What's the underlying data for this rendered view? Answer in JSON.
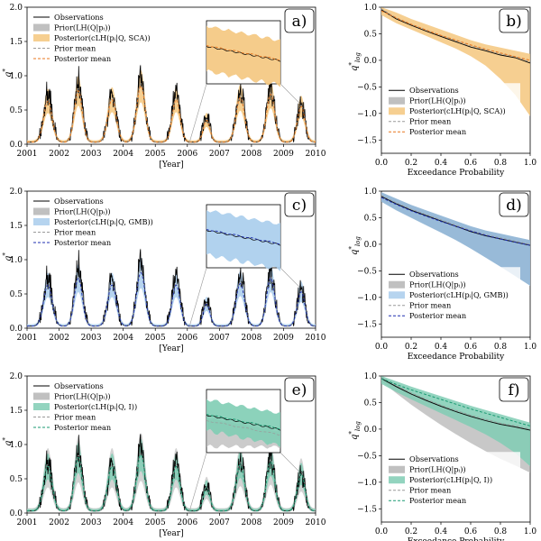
{
  "legend_common": {
    "observations": "Observations",
    "prior": "Prior(LH(Q|pᵢ))",
    "prior_mean": "Prior mean",
    "posterior_mean": "Posterior mean"
  },
  "colors": {
    "observations": "#000000",
    "prior_band": "#b5b5b5",
    "prior_mean": "#9a9a9a",
    "orange_band": "#f4c77e",
    "orange_mean": "#e8771f",
    "blue_band": "#a9cdec",
    "blue_mean": "#1f2fb0",
    "green_band": "#80cdb4",
    "green_mean": "#1a9a72"
  },
  "chart_data": [
    {
      "panel": "a)",
      "type": "line",
      "ylabel": "q*",
      "xlabel": "[Year]",
      "ylim": [
        0,
        2.0
      ],
      "yticks": [
        "0.0",
        "0.5",
        "1.0",
        "1.5",
        "2.0"
      ],
      "xticks": [
        "2001",
        "2002",
        "2003",
        "2004",
        "2005",
        "2006",
        "2007",
        "2008",
        "2009",
        "2010"
      ],
      "xlim": [
        2001,
        2010
      ],
      "posterior_label": "Posterior(cLH(pᵢ|Q, SCA))",
      "theme": "orange",
      "inset": true,
      "peaks": [
        {
          "x": 2001.65,
          "obs": 0.75,
          "mean": 0.6,
          "width": 0.28
        },
        {
          "x": 2002.6,
          "obs": 0.98,
          "mean": 0.75,
          "width": 0.26
        },
        {
          "x": 2003.65,
          "obs": 0.72,
          "mean": 0.62,
          "width": 0.28
        },
        {
          "x": 2004.55,
          "obs": 0.95,
          "mean": 0.82,
          "width": 0.28
        },
        {
          "x": 2005.65,
          "obs": 0.78,
          "mean": 0.62,
          "width": 0.26
        },
        {
          "x": 2006.6,
          "obs": 0.4,
          "mean": 0.32,
          "width": 0.22
        },
        {
          "x": 2007.65,
          "obs": 0.78,
          "mean": 0.65,
          "width": 0.28
        },
        {
          "x": 2008.6,
          "obs": 0.82,
          "mean": 0.7,
          "width": 0.27
        },
        {
          "x": 2009.55,
          "obs": 0.6,
          "mean": 0.52,
          "width": 0.25
        }
      ],
      "baseline": 0.03
    },
    {
      "panel": "b)",
      "type": "line",
      "ylabel": "q*log",
      "xlabel": "Exceedance Probability",
      "ylim": [
        -1.75,
        1.0
      ],
      "yticks": [
        "1.0",
        "0.5",
        "0.0",
        "−0.5",
        "−1.0",
        "−1.5"
      ],
      "xticks": [
        "0.0",
        "0.2",
        "0.4",
        "0.6",
        "0.8",
        "1.0"
      ],
      "xlim": [
        0,
        1
      ],
      "posterior_label": "Posterior(cLH(pᵢ|Q, SCA))",
      "theme": "orange",
      "curve": {
        "x": [
          0,
          0.1,
          0.2,
          0.3,
          0.4,
          0.5,
          0.6,
          0.7,
          0.8,
          0.9,
          1.0
        ],
        "obs": [
          0.95,
          0.78,
          0.66,
          0.55,
          0.45,
          0.35,
          0.25,
          0.18,
          0.1,
          0.05,
          -0.05
        ],
        "mean": [
          0.93,
          0.8,
          0.68,
          0.57,
          0.47,
          0.38,
          0.29,
          0.21,
          0.14,
          0.07,
          0.0
        ],
        "band_hi": [
          1.0,
          0.9,
          0.78,
          0.68,
          0.58,
          0.48,
          0.38,
          0.3,
          0.24,
          0.18,
          0.12
        ],
        "band_lo": [
          0.85,
          0.7,
          0.58,
          0.46,
          0.34,
          0.22,
          0.08,
          -0.1,
          -0.35,
          -0.65,
          -1.05
        ]
      }
    },
    {
      "panel": "c)",
      "type": "line",
      "ylabel": "q*",
      "xlabel": "[Year]",
      "ylim": [
        0,
        2.0
      ],
      "yticks": [
        "0.0",
        "0.5",
        "1.0",
        "1.5",
        "2.0"
      ],
      "xticks": [
        "2001",
        "2002",
        "2003",
        "2004",
        "2005",
        "2006",
        "2007",
        "2008",
        "2009",
        "2010"
      ],
      "xlim": [
        2001,
        2010
      ],
      "posterior_label": "Posterior(cLH(pᵢ|Q, GMB))",
      "theme": "blue",
      "inset": true,
      "peaks": [
        {
          "x": 2001.65,
          "obs": 0.75,
          "mean": 0.6,
          "width": 0.28
        },
        {
          "x": 2002.6,
          "obs": 0.98,
          "mean": 0.7,
          "width": 0.26
        },
        {
          "x": 2003.65,
          "obs": 0.72,
          "mean": 0.6,
          "width": 0.28
        },
        {
          "x": 2004.55,
          "obs": 0.95,
          "mean": 0.78,
          "width": 0.28
        },
        {
          "x": 2005.65,
          "obs": 0.78,
          "mean": 0.6,
          "width": 0.26
        },
        {
          "x": 2006.6,
          "obs": 0.4,
          "mean": 0.32,
          "width": 0.22
        },
        {
          "x": 2007.65,
          "obs": 0.78,
          "mean": 0.62,
          "width": 0.28
        },
        {
          "x": 2008.6,
          "obs": 0.82,
          "mean": 0.7,
          "width": 0.27
        },
        {
          "x": 2009.55,
          "obs": 0.6,
          "mean": 0.5,
          "width": 0.25
        }
      ],
      "baseline": 0.03
    },
    {
      "panel": "d)",
      "type": "line",
      "ylabel": "q*log",
      "xlabel": "Exceedance Probability",
      "ylim": [
        -1.75,
        1.0
      ],
      "yticks": [
        "1.0",
        "0.5",
        "0.0",
        "−0.5",
        "−1.0",
        "−1.5"
      ],
      "xticks": [
        "0.0",
        "0.2",
        "0.4",
        "0.6",
        "0.8",
        "1.0"
      ],
      "xlim": [
        0,
        1
      ],
      "posterior_label": "Posterior(cLH(pᵢ|Q, GMB))",
      "theme": "blue",
      "curve": {
        "x": [
          0,
          0.1,
          0.2,
          0.3,
          0.4,
          0.5,
          0.6,
          0.7,
          0.8,
          0.9,
          1.0
        ],
        "obs": [
          0.9,
          0.76,
          0.64,
          0.54,
          0.44,
          0.34,
          0.24,
          0.16,
          0.1,
          0.04,
          -0.02
        ],
        "mean": [
          0.88,
          0.75,
          0.63,
          0.53,
          0.43,
          0.34,
          0.25,
          0.17,
          0.1,
          0.04,
          -0.02
        ],
        "band_hi": [
          0.98,
          0.86,
          0.74,
          0.64,
          0.54,
          0.44,
          0.34,
          0.26,
          0.2,
          0.14,
          0.08
        ],
        "band_lo": [
          0.8,
          0.64,
          0.5,
          0.36,
          0.22,
          0.08,
          -0.08,
          -0.25,
          -0.42,
          -0.6,
          -0.78
        ]
      }
    },
    {
      "panel": "e)",
      "type": "line",
      "ylabel": "q*",
      "xlabel": "[Year]",
      "ylim": [
        0,
        2.0
      ],
      "yticks": [
        "0.0",
        "0.5",
        "1.0",
        "1.5",
        "2.0"
      ],
      "xticks": [
        "2001",
        "2002",
        "2003",
        "2004",
        "2005",
        "2006",
        "2007",
        "2008",
        "2009",
        "2010"
      ],
      "xlim": [
        2001,
        2010
      ],
      "posterior_label": "Posterior(cLH(pᵢ|Q, I))",
      "theme": "green",
      "inset": true,
      "peaks": [
        {
          "x": 2001.65,
          "obs": 0.75,
          "mean": 0.65,
          "width": 0.28
        },
        {
          "x": 2002.6,
          "obs": 0.98,
          "mean": 0.78,
          "width": 0.26
        },
        {
          "x": 2003.65,
          "obs": 0.72,
          "mean": 0.65,
          "width": 0.28
        },
        {
          "x": 2004.55,
          "obs": 0.95,
          "mean": 0.82,
          "width": 0.28
        },
        {
          "x": 2005.65,
          "obs": 0.78,
          "mean": 0.65,
          "width": 0.26
        },
        {
          "x": 2006.6,
          "obs": 0.4,
          "mean": 0.34,
          "width": 0.22
        },
        {
          "x": 2007.65,
          "obs": 0.78,
          "mean": 0.68,
          "width": 0.28
        },
        {
          "x": 2008.6,
          "obs": 0.82,
          "mean": 0.72,
          "width": 0.27
        },
        {
          "x": 2009.55,
          "obs": 0.6,
          "mean": 0.54,
          "width": 0.25
        }
      ],
      "baseline": 0.03
    },
    {
      "panel": "f)",
      "type": "line",
      "ylabel": "q*log",
      "xlabel": "Exceedance Probability",
      "ylim": [
        -1.75,
        1.0
      ],
      "yticks": [
        "1.0",
        "0.5",
        "0.0",
        "−0.5",
        "−1.0",
        "−1.5"
      ],
      "xticks": [
        "0.0",
        "0.2",
        "0.4",
        "0.6",
        "0.8",
        "1.0"
      ],
      "xlim": [
        0,
        1
      ],
      "posterior_label": "Posterior(cLH(pᵢ|Q, I))",
      "theme": "green",
      "curve": {
        "x": [
          0,
          0.1,
          0.2,
          0.3,
          0.4,
          0.5,
          0.6,
          0.7,
          0.8,
          0.9,
          1.0
        ],
        "obs": [
          0.95,
          0.8,
          0.66,
          0.54,
          0.43,
          0.33,
          0.24,
          0.16,
          0.09,
          0.04,
          -0.02
        ],
        "mean": [
          0.95,
          0.84,
          0.74,
          0.65,
          0.56,
          0.47,
          0.38,
          0.3,
          0.22,
          0.14,
          0.06
        ],
        "band_hi": [
          1.0,
          0.9,
          0.8,
          0.71,
          0.62,
          0.53,
          0.44,
          0.36,
          0.28,
          0.2,
          0.12
        ],
        "band_lo": [
          0.85,
          0.7,
          0.56,
          0.43,
          0.3,
          0.17,
          0.04,
          -0.1,
          -0.26,
          -0.45,
          -0.7
        ]
      }
    }
  ]
}
